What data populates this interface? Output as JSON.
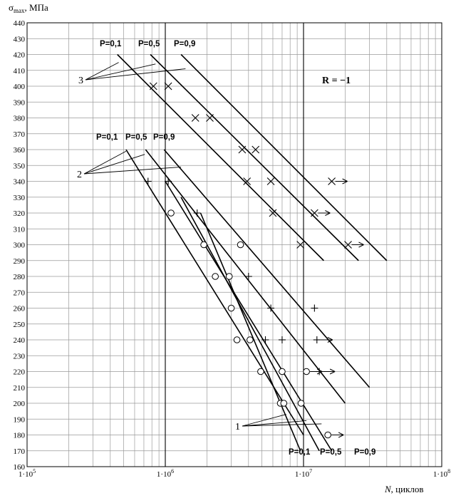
{
  "chart_data": {
    "type": "scatter",
    "title": "",
    "ylabel_symbol": "σ",
    "ylabel_sub": "max",
    "ylabel_unit": ", МПа",
    "xlabel_var": "N",
    "xlabel_unit": ", циклов",
    "x_scale": "log",
    "xlim": [
      100000,
      100000000
    ],
    "ylim": [
      160,
      440
    ],
    "y_ticks": [
      160,
      170,
      180,
      190,
      200,
      210,
      220,
      230,
      240,
      250,
      260,
      270,
      280,
      290,
      300,
      310,
      320,
      330,
      340,
      350,
      360,
      370,
      380,
      390,
      400,
      410,
      420,
      430,
      440
    ],
    "x_ticks": [
      100000,
      1000000,
      10000000,
      100000000
    ],
    "x_tick_labels": [
      "1·10",
      "1·10",
      "1·10",
      "1·10"
    ],
    "x_tick_exps": [
      "5",
      "6",
      "7",
      "8"
    ],
    "grid": "both",
    "annotation_r": "R = −1",
    "groups": [
      {
        "label": "1",
        "marker": "circle",
        "probability_labels": [
          "P=0,1",
          "P=0,5",
          "P=0,9"
        ],
        "lines": [
          {
            "p": "P=0,1",
            "points": [
              [
                1800000,
                320
              ],
              [
                9500000,
                170
              ]
            ]
          },
          {
            "p": "P=0,5",
            "points": [
              [
                1300000,
                330
              ],
              [
                13000000,
                170
              ]
            ]
          },
          {
            "p": "P=0,9",
            "points": [
              [
                1000000,
                340
              ],
              [
                16000000,
                170
              ]
            ]
          }
        ],
        "points": [
          {
            "x": 1100000,
            "y": 320
          },
          {
            "x": 1900000,
            "y": 300
          },
          {
            "x": 3500000,
            "y": 300
          },
          {
            "x": 2300000,
            "y": 280
          },
          {
            "x": 2900000,
            "y": 280
          },
          {
            "x": 3000000,
            "y": 260
          },
          {
            "x": 3300000,
            "y": 240
          },
          {
            "x": 4100000,
            "y": 240
          },
          {
            "x": 4900000,
            "y": 220
          },
          {
            "x": 7000000,
            "y": 220
          },
          {
            "x": 10500000,
            "y": 220,
            "runout": true
          },
          {
            "x": 6800000,
            "y": 200
          },
          {
            "x": 7200000,
            "y": 200
          },
          {
            "x": 9600000,
            "y": 200
          },
          {
            "x": 15000000,
            "y": 180,
            "runout": true
          }
        ]
      },
      {
        "label": "2",
        "marker": "plus",
        "probability_labels": [
          "P=0,1",
          "P=0,5",
          "P=0,9"
        ],
        "lines": [
          {
            "p": "P=0,1",
            "points": [
              [
                520000,
                360
              ],
              [
                10000000,
                180
              ]
            ]
          },
          {
            "p": "P=0,5",
            "points": [
              [
                720000,
                360
              ],
              [
                20000000,
                200
              ]
            ]
          },
          {
            "p": "P=0,9",
            "points": [
              [
                980000,
                360
              ],
              [
                30000000,
                210
              ]
            ]
          }
        ],
        "points": [
          {
            "x": 750000,
            "y": 340
          },
          {
            "x": 1050000,
            "y": 340
          },
          {
            "x": 1700000,
            "y": 320
          },
          {
            "x": 4000000,
            "y": 280
          },
          {
            "x": 5800000,
            "y": 260
          },
          {
            "x": 12000000,
            "y": 260
          },
          {
            "x": 5300000,
            "y": 240
          },
          {
            "x": 7000000,
            "y": 240
          },
          {
            "x": 12500000,
            "y": 240,
            "runout": true
          },
          {
            "x": 13000000,
            "y": 220,
            "runout": true
          }
        ]
      },
      {
        "label": "3",
        "marker": "cross",
        "probability_labels": [
          "P=0,1",
          "P=0,5",
          "P=0,9"
        ],
        "lines": [
          {
            "p": "P=0,1",
            "points": [
              [
                450000,
                420
              ],
              [
                14000000,
                290
              ]
            ]
          },
          {
            "p": "P=0,5",
            "points": [
              [
                780000,
                420
              ],
              [
                25000000,
                290
              ]
            ]
          },
          {
            "p": "P=0,9",
            "points": [
              [
                1300000,
                420
              ],
              [
                40000000,
                290
              ]
            ]
          }
        ],
        "points": [
          {
            "x": 820000,
            "y": 400
          },
          {
            "x": 1050000,
            "y": 400
          },
          {
            "x": 1650000,
            "y": 380
          },
          {
            "x": 2100000,
            "y": 380
          },
          {
            "x": 3600000,
            "y": 360
          },
          {
            "x": 4500000,
            "y": 360
          },
          {
            "x": 3900000,
            "y": 340
          },
          {
            "x": 5800000,
            "y": 340
          },
          {
            "x": 16000000,
            "y": 340,
            "runout": true
          },
          {
            "x": 6000000,
            "y": 320
          },
          {
            "x": 12000000,
            "y": 320,
            "runout": true
          },
          {
            "x": 9500000,
            "y": 300
          },
          {
            "x": 21000000,
            "y": 300,
            "runout": true
          }
        ]
      }
    ]
  }
}
